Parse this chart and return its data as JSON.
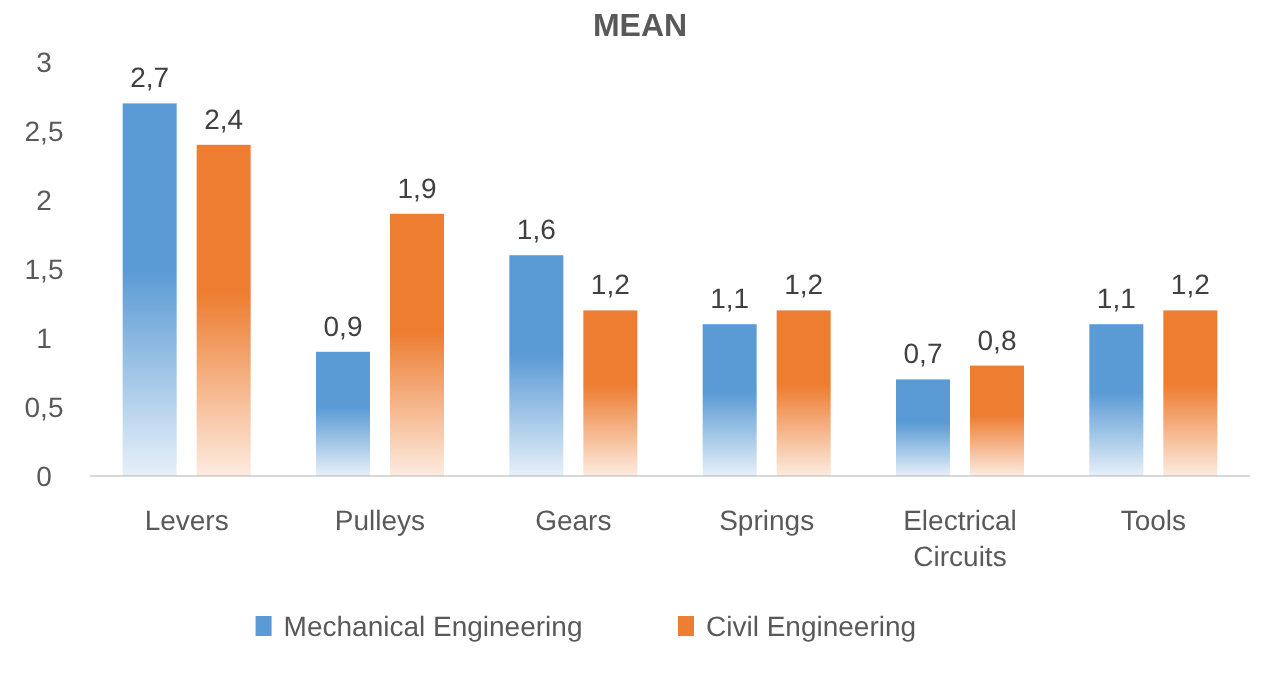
{
  "chart_data": {
    "type": "bar",
    "title": "MEAN",
    "categories": [
      "Levers",
      "Pulleys",
      "Gears",
      "Springs",
      "Electrical Circuits",
      "Tools"
    ],
    "series": [
      {
        "name": "Mechanical Engineering",
        "color": "#5b9bd5",
        "values": [
          2.7,
          0.9,
          1.6,
          1.1,
          0.7,
          1.1
        ],
        "value_labels": [
          "2,7",
          "0,9",
          "1,6",
          "1,1",
          "0,7",
          "1,1"
        ]
      },
      {
        "name": "Civil Engineering",
        "color": "#ed7d31",
        "values": [
          2.4,
          1.9,
          1.2,
          1.2,
          0.8,
          1.2
        ],
        "value_labels": [
          "2,4",
          "1,9",
          "1,2",
          "1,2",
          "0,8",
          "1,2"
        ]
      }
    ],
    "ylim": [
      0,
      3
    ],
    "yticks": [
      0,
      {
        "value": 0.5,
        "label": "0,5"
      },
      1,
      {
        "value": 1.5,
        "label": "1,5"
      },
      2,
      {
        "value": 2.5,
        "label": "2,5"
      },
      3
    ],
    "grid": false,
    "legend": "bottom"
  }
}
